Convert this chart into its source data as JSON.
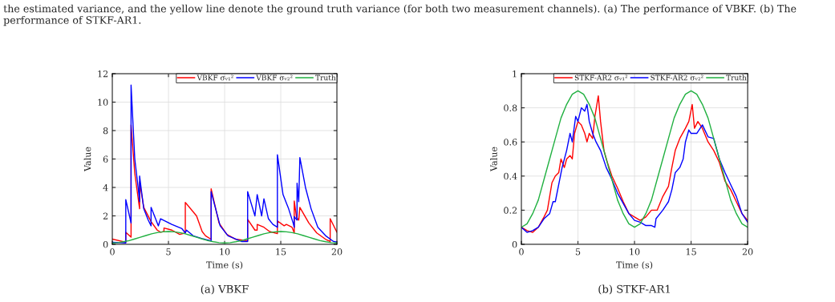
{
  "chart_data": [
    {
      "type": "line",
      "xlabel": "Time (s)",
      "ylabel": "Value",
      "xlim": [
        0,
        20
      ],
      "ylim": [
        0,
        12
      ],
      "xticks": [
        0,
        5,
        10,
        15,
        20
      ],
      "yticks": [
        0,
        2,
        4,
        6,
        8,
        10,
        12
      ],
      "grid": true,
      "legend": "top right",
      "marker": "none",
      "line_style": "solid",
      "annotations": [
        "the estimated variance, and the yellow line denote the ground truth variance (for both two measurement channels). (a) The performance of VBKF. (b) The performance of STKF-AR1.",
        "(a) VBKF"
      ],
      "series": [
        {
          "name": "VBKF σᵥ₁²",
          "color": "#ff0000",
          "x": [
            0,
            1.2,
            1.2,
            1.67,
            1.67,
            2.0,
            2.43,
            2.43,
            2.8,
            3.45,
            4.0,
            4.3,
            4.6,
            4.6,
            5.3,
            6.0,
            6.5,
            6.5,
            7.5,
            8.0,
            8.3,
            8.8,
            8.8,
            9.5,
            10.2,
            11.0,
            12.05,
            12.05,
            12.7,
            12.9,
            12.9,
            13.5,
            14.0,
            14.7,
            14.7,
            15.3,
            15.5,
            16.0,
            16.2,
            16.2,
            16.4,
            16.6,
            16.7,
            17.5,
            18.2,
            19.0,
            19.4,
            19.4,
            20
          ],
          "values": [
            0.37,
            0.15,
            0.85,
            0.5,
            8.4,
            5.0,
            2.5,
            4.4,
            2.6,
            1.6,
            1.0,
            0.85,
            0.9,
            1.15,
            1.0,
            0.7,
            0.8,
            2.95,
            2.0,
            0.9,
            0.6,
            0.35,
            3.9,
            1.5,
            0.7,
            0.35,
            0.25,
            1.75,
            1.0,
            1.0,
            1.4,
            1.2,
            0.9,
            0.75,
            1.65,
            1.3,
            1.4,
            1.2,
            0.8,
            3.05,
            1.9,
            1.7,
            2.6,
            1.5,
            0.8,
            0.35,
            0.2,
            1.8,
            0.85
          ]
        },
        {
          "name": "VBKF σᵥ₂²",
          "color": "#0000ff",
          "x": [
            0,
            1.2,
            1.2,
            1.67,
            1.67,
            2.0,
            2.3,
            2.43,
            2.43,
            2.8,
            3.2,
            3.45,
            3.45,
            3.9,
            4.1,
            4.3,
            4.8,
            5.3,
            5.6,
            6.2,
            6.5,
            6.6,
            7.2,
            8.0,
            8.8,
            8.8,
            9.6,
            10.3,
            11.5,
            12.05,
            12.05,
            12.7,
            12.9,
            13.3,
            13.5,
            13.9,
            14.3,
            14.7,
            14.7,
            15.2,
            15.7,
            16.1,
            16.2,
            16.2,
            16.45,
            16.45,
            16.6,
            16.7,
            17.2,
            17.7,
            18.3,
            19.0,
            19.7,
            20
          ],
          "values": [
            0.15,
            0.1,
            3.15,
            1.5,
            11.2,
            6.0,
            4.0,
            3.0,
            4.8,
            2.5,
            1.7,
            1.3,
            2.6,
            1.7,
            1.3,
            1.8,
            1.6,
            1.4,
            1.3,
            1.1,
            0.8,
            1.0,
            0.6,
            0.4,
            0.25,
            3.7,
            1.3,
            0.6,
            0.2,
            0.2,
            3.7,
            2.0,
            3.5,
            2.0,
            3.2,
            1.8,
            1.4,
            1.2,
            6.3,
            3.5,
            2.5,
            1.5,
            1.2,
            1.95,
            1.7,
            4.3,
            3.0,
            6.1,
            4.0,
            2.5,
            1.2,
            0.6,
            0.2,
            0.15
          ]
        },
        {
          "name": "Truth",
          "color": "#20b040",
          "x": [
            0,
            0.5,
            1,
            1.5,
            2,
            2.5,
            3,
            3.5,
            4,
            4.5,
            5,
            5.5,
            6,
            6.5,
            7,
            7.5,
            8,
            8.5,
            9,
            9.5,
            10,
            10.5,
            11,
            11.5,
            12,
            12.5,
            13,
            13.5,
            14,
            14.5,
            15,
            15.5,
            16,
            16.5,
            17,
            17.5,
            18,
            18.5,
            19,
            19.5,
            20
          ],
          "values": [
            0.1,
            0.12,
            0.18,
            0.26,
            0.38,
            0.5,
            0.62,
            0.74,
            0.82,
            0.88,
            0.9,
            0.88,
            0.82,
            0.74,
            0.62,
            0.5,
            0.38,
            0.26,
            0.18,
            0.12,
            0.1,
            0.12,
            0.18,
            0.26,
            0.38,
            0.5,
            0.62,
            0.74,
            0.82,
            0.88,
            0.9,
            0.88,
            0.82,
            0.74,
            0.62,
            0.5,
            0.38,
            0.26,
            0.18,
            0.12,
            0.1
          ]
        }
      ]
    },
    {
      "type": "line",
      "xlabel": "Time (s)",
      "ylabel": "Value",
      "xlim": [
        0,
        20
      ],
      "ylim": [
        0,
        1
      ],
      "xticks": [
        0,
        5,
        10,
        15,
        20
      ],
      "yticks": [
        0,
        0.2,
        0.4,
        0.6,
        0.8,
        1
      ],
      "grid": true,
      "legend": "top right",
      "marker": "none",
      "line_style": "solid",
      "annotations": [
        "(b) STKF-AR1"
      ],
      "series": [
        {
          "name": "STKF-AR2 σᵥ₁²",
          "color": "#ff0000",
          "x": [
            0,
            0.5,
            1,
            1.5,
            2,
            2.3,
            2.5,
            2.7,
            3,
            3.3,
            3.5,
            3.8,
            4,
            4.3,
            4.5,
            4.7,
            5,
            5.3,
            5.6,
            5.8,
            6,
            6.3,
            6.5,
            6.8,
            7.0,
            7.3,
            7.6,
            8,
            8.5,
            9,
            9.5,
            10,
            10.5,
            11,
            11.5,
            12,
            12.5,
            13,
            13.3,
            13.6,
            14,
            14.5,
            14.8,
            15.1,
            15.3,
            15.6,
            16,
            16.5,
            17,
            17.5,
            18,
            18.5,
            19,
            19.5,
            20
          ],
          "values": [
            0.1,
            0.08,
            0.07,
            0.1,
            0.16,
            0.2,
            0.28,
            0.36,
            0.4,
            0.42,
            0.5,
            0.45,
            0.5,
            0.52,
            0.5,
            0.65,
            0.72,
            0.7,
            0.65,
            0.6,
            0.65,
            0.62,
            0.75,
            0.87,
            0.72,
            0.55,
            0.48,
            0.4,
            0.33,
            0.25,
            0.18,
            0.16,
            0.14,
            0.16,
            0.2,
            0.2,
            0.28,
            0.34,
            0.45,
            0.55,
            0.62,
            0.68,
            0.72,
            0.82,
            0.68,
            0.72,
            0.68,
            0.6,
            0.55,
            0.48,
            0.37,
            0.32,
            0.25,
            0.18,
            0.14
          ]
        },
        {
          "name": "STKF-AR2 σᵥ₂²",
          "color": "#0000ff",
          "x": [
            0,
            0.5,
            1,
            1.5,
            2,
            2.5,
            2.8,
            3,
            3.3,
            3.6,
            4,
            4.3,
            4.5,
            4.8,
            5,
            5.3,
            5.6,
            5.8,
            6,
            6.3,
            6.6,
            7,
            7.5,
            8,
            8.5,
            9,
            9.5,
            10,
            10.5,
            11,
            11.5,
            11.8,
            11.9,
            12.5,
            13,
            13.3,
            13.6,
            14,
            14.3,
            14.5,
            14.8,
            15,
            15.5,
            16,
            16.5,
            17,
            17.5,
            18,
            18.5,
            19,
            19.5,
            20
          ],
          "values": [
            0.1,
            0.07,
            0.08,
            0.1,
            0.15,
            0.18,
            0.25,
            0.25,
            0.35,
            0.45,
            0.55,
            0.65,
            0.6,
            0.75,
            0.72,
            0.8,
            0.78,
            0.82,
            0.72,
            0.65,
            0.6,
            0.55,
            0.45,
            0.38,
            0.3,
            0.24,
            0.18,
            0.14,
            0.13,
            0.11,
            0.11,
            0.1,
            0.15,
            0.2,
            0.25,
            0.32,
            0.42,
            0.45,
            0.5,
            0.6,
            0.67,
            0.65,
            0.65,
            0.7,
            0.63,
            0.62,
            0.5,
            0.42,
            0.35,
            0.28,
            0.18,
            0.13
          ]
        },
        {
          "name": "Truth",
          "color": "#20b040",
          "x": [
            0,
            0.5,
            1,
            1.5,
            2,
            2.5,
            3,
            3.5,
            4,
            4.5,
            5,
            5.5,
            6,
            6.5,
            7,
            7.5,
            8,
            8.5,
            9,
            9.5,
            10,
            10.5,
            11,
            11.5,
            12,
            12.5,
            13,
            13.5,
            14,
            14.5,
            15,
            15.5,
            16,
            16.5,
            17,
            17.5,
            18,
            18.5,
            19,
            19.5,
            20
          ],
          "values": [
            0.1,
            0.12,
            0.18,
            0.26,
            0.38,
            0.5,
            0.62,
            0.74,
            0.82,
            0.88,
            0.9,
            0.88,
            0.82,
            0.74,
            0.62,
            0.5,
            0.38,
            0.26,
            0.18,
            0.12,
            0.1,
            0.12,
            0.18,
            0.26,
            0.38,
            0.5,
            0.62,
            0.74,
            0.82,
            0.88,
            0.9,
            0.88,
            0.82,
            0.74,
            0.62,
            0.5,
            0.38,
            0.26,
            0.18,
            0.12,
            0.1
          ]
        }
      ]
    }
  ]
}
